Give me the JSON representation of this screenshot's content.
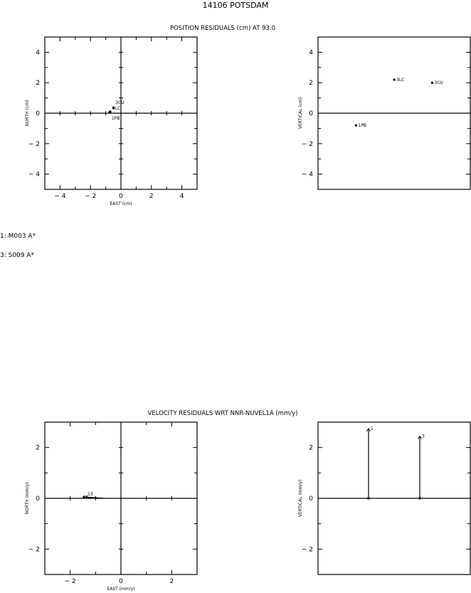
{
  "title": "14106 POTSDAM",
  "position_title": "POSITION RESIDUALS (cm) AT 93.0",
  "velocity_title": "VELOCITY RESIDUALS WRT NNR-NUVEL1A (mm/y)",
  "legend": [
    "1: M003 A*",
    "3: S009 A*"
  ],
  "chart_data": [
    {
      "type": "scatter",
      "id": "pos-horizontal",
      "xlabel": "EAST (cm)",
      "ylabel": "NORTH (cm)",
      "xlim": [
        -5,
        5
      ],
      "ylim": [
        -5,
        5
      ],
      "xticks": [
        -4,
        -2,
        0,
        2,
        4
      ],
      "yticks": [
        -4,
        -2,
        0,
        2,
        4
      ],
      "points": [
        {
          "label": "3CU",
          "x": -0.5,
          "y": 0.35
        },
        {
          "label": "3LC",
          "x": -0.7,
          "y": 0.1
        },
        {
          "label": "1PB",
          "x": -0.75,
          "y": 0.05
        }
      ]
    },
    {
      "type": "scatter",
      "id": "pos-vertical",
      "xlabel": "",
      "ylabel": "VERTICAL (cm)",
      "ylim": [
        -5,
        5
      ],
      "yticks": [
        -4,
        -2,
        0,
        2,
        4
      ],
      "points": [
        {
          "label": "1PB",
          "y": -0.8
        },
        {
          "label": "3LC",
          "y": 2.2
        },
        {
          "label": "3CU",
          "y": 2.0
        }
      ]
    },
    {
      "type": "vector",
      "id": "vel-horizontal",
      "xlabel": "EAST (mm/y)",
      "ylabel": "NORTH (mm/y)",
      "xlim": [
        -3,
        3
      ],
      "ylim": [
        -3,
        3
      ],
      "xticks": [
        -2,
        0,
        2
      ],
      "yticks": [
        -2,
        0,
        2
      ],
      "vectors": [
        {
          "label": "1",
          "x0": -0.7,
          "y0": 0.0,
          "x1": -1.5,
          "y1": 0.05
        },
        {
          "label": "3",
          "x0": -0.9,
          "y0": 0.0,
          "x1": -1.4,
          "y1": 0.05
        }
      ]
    },
    {
      "type": "vector",
      "id": "vel-vertical",
      "xlabel": "",
      "ylabel": "VERTICAL (mm/y)",
      "ylim": [
        -3,
        3
      ],
      "yticks": [
        -2,
        0,
        2
      ],
      "vectors": [
        {
          "label": "1",
          "value": 2.75
        },
        {
          "label": "3",
          "value": 2.45
        }
      ]
    }
  ]
}
